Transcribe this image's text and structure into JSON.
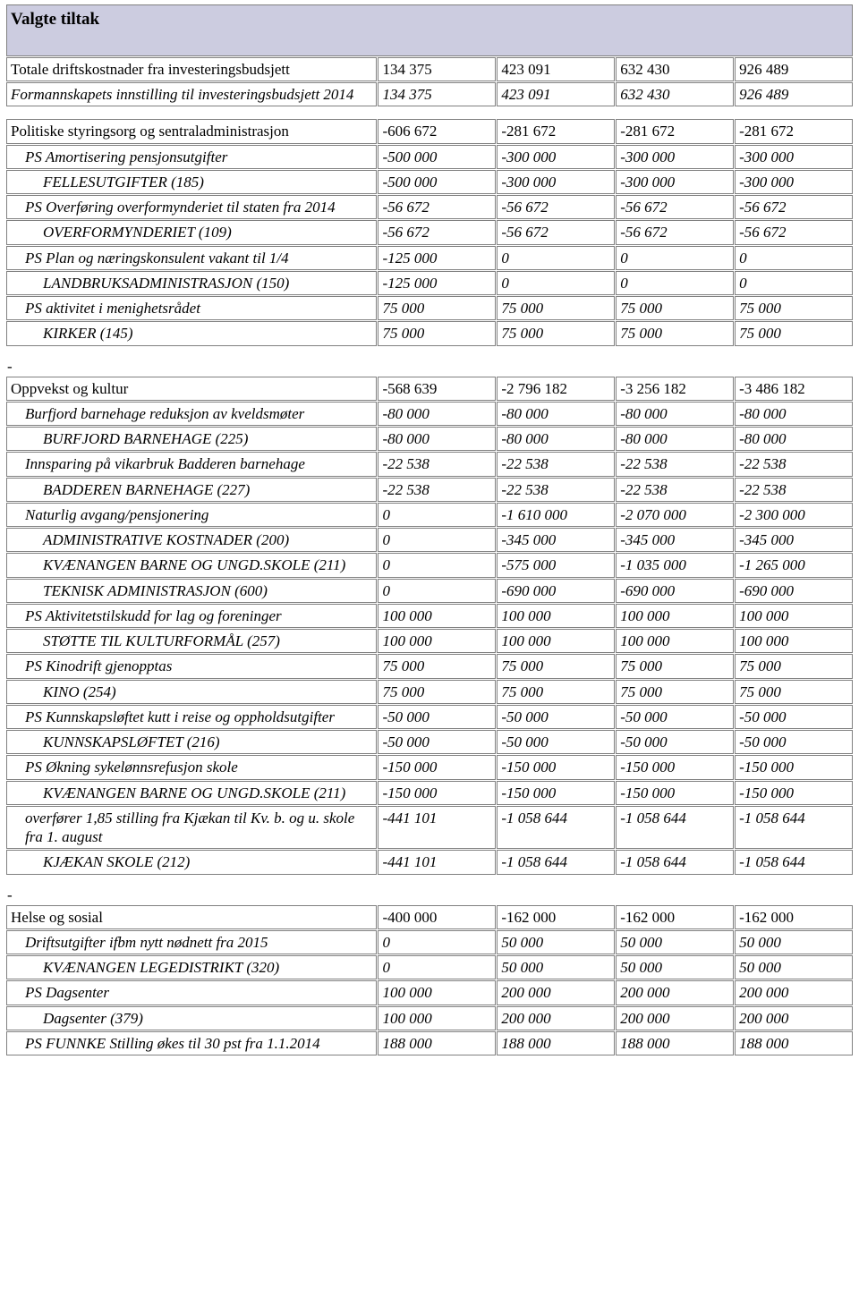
{
  "table1": {
    "header": "Valgte tiltak",
    "rows": [
      {
        "label": "Totale driftskostnader fra investeringsbudsjett",
        "indent": 0,
        "italic": false,
        "v": [
          "134 375",
          "423 091",
          "632 430",
          "926 489"
        ]
      },
      {
        "label": "Formannskapets innstilling til investeringsbudsjett 2014",
        "indent": 0,
        "italic": true,
        "v": [
          "134 375",
          "423 091",
          "632 430",
          "926 489"
        ]
      }
    ]
  },
  "table2": {
    "rows": [
      {
        "label": "Politiske styringsorg og sentraladministrasjon",
        "indent": 0,
        "italic": false,
        "v": [
          "-606 672",
          "-281 672",
          "-281 672",
          "-281 672"
        ]
      },
      {
        "label": "PS Amortisering pensjonsutgifter",
        "indent": 1,
        "italic": true,
        "v": [
          "-500 000",
          "-300 000",
          "-300 000",
          "-300 000"
        ]
      },
      {
        "label": "FELLESUTGIFTER (185)",
        "indent": 2,
        "italic": true,
        "v": [
          "-500 000",
          "-300 000",
          "-300 000",
          "-300 000"
        ]
      },
      {
        "label": "PS Overføring overformynderiet til staten fra 2014",
        "indent": 1,
        "italic": true,
        "v": [
          "-56 672",
          "-56 672",
          "-56 672",
          "-56 672"
        ]
      },
      {
        "label": "OVERFORMYNDERIET (109)",
        "indent": 2,
        "italic": true,
        "v": [
          "-56 672",
          "-56 672",
          "-56 672",
          "-56 672"
        ]
      },
      {
        "label": "PS Plan og næringskonsulent vakant til 1/4",
        "indent": 1,
        "italic": true,
        "v": [
          "-125 000",
          "0",
          "0",
          "0"
        ]
      },
      {
        "label": "LANDBRUKSADMINISTRASJON (150)",
        "indent": 2,
        "italic": true,
        "v": [
          "-125 000",
          "0",
          "0",
          "0"
        ]
      },
      {
        "label": "PS aktivitet i menighetsrådet",
        "indent": 1,
        "italic": true,
        "v": [
          "75 000",
          "75 000",
          "75 000",
          "75 000"
        ]
      },
      {
        "label": "KIRKER (145)",
        "indent": 2,
        "italic": true,
        "v": [
          "75 000",
          "75 000",
          "75 000",
          "75 000"
        ]
      }
    ]
  },
  "table3": {
    "rows": [
      {
        "label": "Oppvekst og kultur",
        "indent": 0,
        "italic": false,
        "v": [
          "-568 639",
          "-2 796 182",
          "-3 256 182",
          "-3 486 182"
        ]
      },
      {
        "label": "Burfjord barnehage reduksjon av kveldsmøter",
        "indent": 1,
        "italic": true,
        "v": [
          "-80 000",
          "-80 000",
          "-80 000",
          "-80 000"
        ]
      },
      {
        "label": "BURFJORD BARNEHAGE (225)",
        "indent": 2,
        "italic": true,
        "v": [
          "-80 000",
          "-80 000",
          "-80 000",
          "-80 000"
        ]
      },
      {
        "label": "Innsparing på vikarbruk Badderen barnehage",
        "indent": 1,
        "italic": true,
        "v": [
          "-22 538",
          "-22 538",
          "-22 538",
          "-22 538"
        ]
      },
      {
        "label": "BADDEREN BARNEHAGE (227)",
        "indent": 2,
        "italic": true,
        "v": [
          "-22 538",
          "-22 538",
          "-22 538",
          "-22 538"
        ]
      },
      {
        "label": "Naturlig avgang/pensjonering",
        "indent": 1,
        "italic": true,
        "v": [
          "0",
          "-1 610 000",
          "-2 070 000",
          "-2 300 000"
        ]
      },
      {
        "label": "ADMINISTRATIVE KOSTNADER (200)",
        "indent": 2,
        "italic": true,
        "v": [
          "0",
          "-345 000",
          "-345 000",
          "-345 000"
        ]
      },
      {
        "label": "KVÆNANGEN BARNE OG UNGD.SKOLE (211)",
        "indent": 2,
        "italic": true,
        "v": [
          "0",
          "-575 000",
          "-1 035 000",
          "-1 265 000"
        ]
      },
      {
        "label": "TEKNISK ADMINISTRASJON (600)",
        "indent": 2,
        "italic": true,
        "v": [
          "0",
          "-690 000",
          "-690 000",
          "-690 000"
        ]
      },
      {
        "label": "PS Aktivitetstilskudd for lag og foreninger",
        "indent": 1,
        "italic": true,
        "v": [
          "100 000",
          "100 000",
          "100 000",
          "100 000"
        ]
      },
      {
        "label": "STØTTE TIL KULTURFORMÅL (257)",
        "indent": 2,
        "italic": true,
        "v": [
          "100 000",
          "100 000",
          "100 000",
          "100 000"
        ]
      },
      {
        "label": "PS Kinodrift gjenopptas",
        "indent": 1,
        "italic": true,
        "v": [
          "75 000",
          "75 000",
          "75 000",
          "75 000"
        ]
      },
      {
        "label": "KINO (254)",
        "indent": 2,
        "italic": true,
        "v": [
          "75 000",
          "75 000",
          "75 000",
          "75 000"
        ]
      },
      {
        "label": "PS Kunnskapsløftet kutt i reise og oppholdsutgifter",
        "indent": 1,
        "italic": true,
        "v": [
          "-50 000",
          "-50 000",
          "-50 000",
          "-50 000"
        ]
      },
      {
        "label": "KUNNSKAPSLØFTET (216)",
        "indent": 2,
        "italic": true,
        "v": [
          "-50 000",
          "-50 000",
          "-50 000",
          "-50 000"
        ]
      },
      {
        "label": "PS Økning sykelønnsrefusjon skole",
        "indent": 1,
        "italic": true,
        "v": [
          "-150 000",
          "-150 000",
          "-150 000",
          "-150 000"
        ]
      },
      {
        "label": "KVÆNANGEN BARNE OG UNGD.SKOLE (211)",
        "indent": 2,
        "italic": true,
        "v": [
          "-150 000",
          "-150 000",
          "-150 000",
          "-150 000"
        ]
      },
      {
        "label": "overfører 1,85 stilling fra Kjækan til Kv. b. og u. skole fra 1. august",
        "indent": 1,
        "italic": true,
        "v": [
          "-441 101",
          "-1 058 644",
          "-1 058 644",
          "-1 058 644"
        ]
      },
      {
        "label": "KJÆKAN SKOLE (212)",
        "indent": 2,
        "italic": true,
        "v": [
          "-441 101",
          "-1 058 644",
          "-1 058 644",
          "-1 058 644"
        ]
      }
    ]
  },
  "table4": {
    "rows": [
      {
        "label": "Helse og sosial",
        "indent": 0,
        "italic": false,
        "v": [
          "-400 000",
          "-162 000",
          "-162 000",
          "-162 000"
        ]
      },
      {
        "label": "Driftsutgifter ifbm nytt nødnett fra 2015",
        "indent": 1,
        "italic": true,
        "v": [
          "0",
          "50 000",
          "50 000",
          "50 000"
        ]
      },
      {
        "label": "KVÆNANGEN LEGEDISTRIKT (320)",
        "indent": 2,
        "italic": true,
        "v": [
          "0",
          "50 000",
          "50 000",
          "50 000"
        ]
      },
      {
        "label": "PS Dagsenter",
        "indent": 1,
        "italic": true,
        "v": [
          "100 000",
          "200 000",
          "200 000",
          "200 000"
        ]
      },
      {
        "label": "Dagsenter (379)",
        "indent": 2,
        "italic": true,
        "v": [
          "100 000",
          "200 000",
          "200 000",
          "200 000"
        ]
      },
      {
        "label": "PS FUNNKE Stilling økes til 30 pst fra 1.1.2014",
        "indent": 1,
        "italic": true,
        "v": [
          "188 000",
          "188 000",
          "188 000",
          "188 000"
        ]
      }
    ]
  },
  "separator": "-"
}
